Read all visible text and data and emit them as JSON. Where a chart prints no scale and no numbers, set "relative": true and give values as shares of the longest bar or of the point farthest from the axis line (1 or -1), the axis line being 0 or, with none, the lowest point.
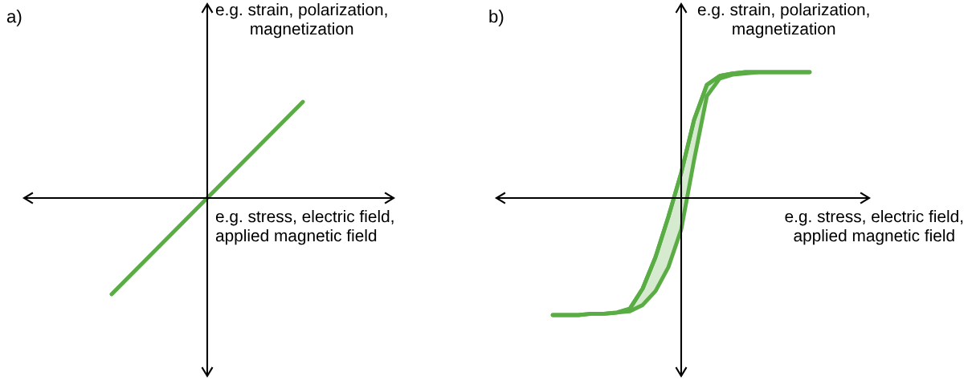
{
  "chart_data": [
    {
      "type": "line",
      "title": "a)",
      "xlabel": "e.g. stress, electric field,\napplied magnetic field",
      "ylabel": "e.g. strain, polarization,\nmagnetization",
      "relative": true,
      "categories": [
        null,
        null,
        null,
        null,
        null,
        null,
        null,
        null,
        null,
        null,
        null,
        null,
        null,
        null,
        null,
        null,
        null,
        null,
        null,
        null,
        null
      ],
      "series": [
        {
          "color": "#5aac44",
          "values": [
            null,
            null,
            null,
            null,
            null,
            -1,
            -0.8,
            -0.6,
            -0.4,
            -0.2,
            0,
            0.2,
            0.4,
            0.6,
            0.8,
            1,
            null,
            null,
            null,
            null,
            null
          ]
        }
      ]
    },
    {
      "type": "line",
      "title": "b)",
      "xlabel": "e.g. stress, electric field,\napplied magnetic field",
      "ylabel": "e.g. strain, polarization,\nmagnetization",
      "relative": true,
      "categories": [
        null,
        null,
        null,
        null,
        null,
        null,
        null,
        null,
        null,
        null,
        null,
        null,
        null,
        null,
        null,
        null,
        null,
        null,
        null,
        null,
        null,
        null,
        null,
        null,
        null,
        null,
        null,
        null,
        null,
        null,
        null
      ],
      "series": [
        {
          "color": "#5aac44",
          "values": [
            null,
            null,
            null,
            null,
            null,
            -0.93,
            -0.93,
            -0.93,
            -0.92,
            -0.92,
            -0.91,
            -0.88,
            -0.72,
            -0.47,
            -0.15,
            0.2,
            0.62,
            0.9,
            0.97,
            0.99,
            1,
            1,
            1,
            1,
            1,
            1,
            null,
            null,
            null,
            null,
            null
          ],
          "lower": [
            null,
            null,
            null,
            null,
            null,
            -0.93,
            -0.93,
            -0.93,
            -0.92,
            -0.92,
            -0.91,
            -0.9,
            -0.85,
            -0.74,
            -0.55,
            -0.25,
            0.3,
            0.81,
            0.95,
            0.98,
            0.99,
            1,
            1,
            1,
            1,
            1,
            null,
            null,
            null,
            null,
            null
          ],
          "upper": [
            null,
            null,
            null,
            null,
            null,
            -0.93,
            -0.93,
            -0.93,
            -0.92,
            -0.92,
            -0.91,
            -0.88,
            -0.72,
            -0.47,
            -0.15,
            0.2,
            0.62,
            0.9,
            0.97,
            0.99,
            1,
            1,
            1,
            1,
            1,
            1,
            null,
            null,
            null,
            null,
            null
          ]
        }
      ]
    }
  ]
}
